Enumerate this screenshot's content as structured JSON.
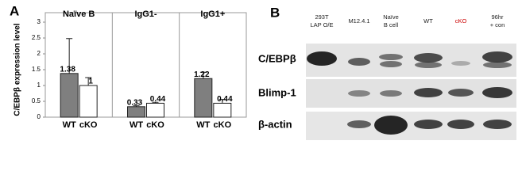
{
  "chart_data": {
    "type": "bar",
    "panel_label": "A",
    "ylabel": "C/EBPβ expression level",
    "ylim": [
      0,
      3
    ],
    "yticks": [
      0,
      0.5,
      1,
      1.5,
      2,
      2.5,
      3
    ],
    "colors": [
      "#7f7f7f",
      "#ffffff"
    ],
    "groups": [
      {
        "title": "Naïve B",
        "categories": [
          "WT",
          "cKO"
        ],
        "values": [
          1.38,
          1
        ],
        "errors": [
          1.1,
          0.25
        ]
      },
      {
        "title": "IgG1-",
        "categories": [
          "WT",
          "cKO"
        ],
        "values": [
          0.33,
          0.44
        ],
        "errors": [
          0.03,
          0.03
        ]
      },
      {
        "title": "IgG1+",
        "categories": [
          "WT",
          "cKO"
        ],
        "values": [
          1.22,
          0.44
        ],
        "errors": [
          0.2,
          0.12
        ]
      }
    ]
  },
  "blot": {
    "panel_label": "B",
    "lanes": [
      [
        "293T",
        "LAP O/E"
      ],
      [
        "M12.4.1"
      ],
      [
        "Naïve",
        "B cell"
      ],
      [
        "WT"
      ],
      [
        "cKO"
      ],
      [
        "96hr",
        "+ con"
      ]
    ],
    "rows": [
      "C/EBPβ",
      "Blimp-1",
      "β-actin"
    ]
  }
}
